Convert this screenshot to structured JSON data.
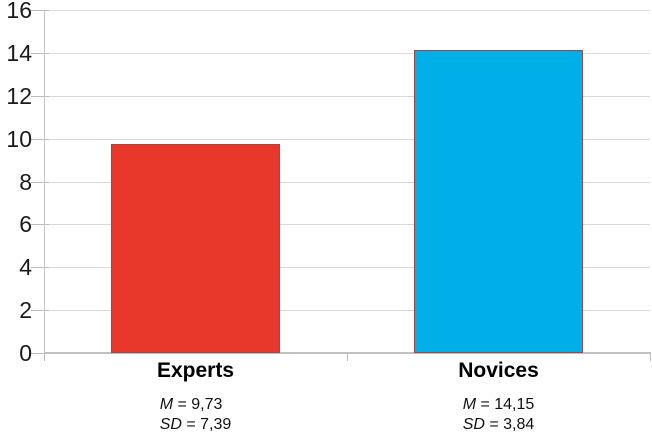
{
  "chart_data": {
    "type": "bar",
    "title": "",
    "xlabel": "",
    "ylabel": "",
    "categories": [
      "Experts",
      "Novices"
    ],
    "values": [
      9.73,
      14.15
    ],
    "stats": [
      {
        "m_prefix": "M",
        "m_rest": " = 9,73",
        "sd_prefix": "SD",
        "sd_rest": " = 7,39"
      },
      {
        "m_prefix": "M",
        "m_rest": " = 14,15",
        "sd_prefix": "SD",
        "sd_rest": " = 3,84"
      }
    ],
    "ylim": [
      0,
      16
    ],
    "yticks": [
      0,
      2,
      4,
      6,
      8,
      10,
      12,
      14,
      16
    ],
    "grid": true,
    "legend": "none",
    "style": {
      "bar_fill_colors": [
        "#e8382c",
        "#00aee8"
      ],
      "bar_border_color": "#9a4a42",
      "gridline_color": "#d9d9d9",
      "axis_color": "#c6c6c6",
      "tick_color": "#bdbdbd",
      "text_color": "#1a1a1a"
    }
  }
}
